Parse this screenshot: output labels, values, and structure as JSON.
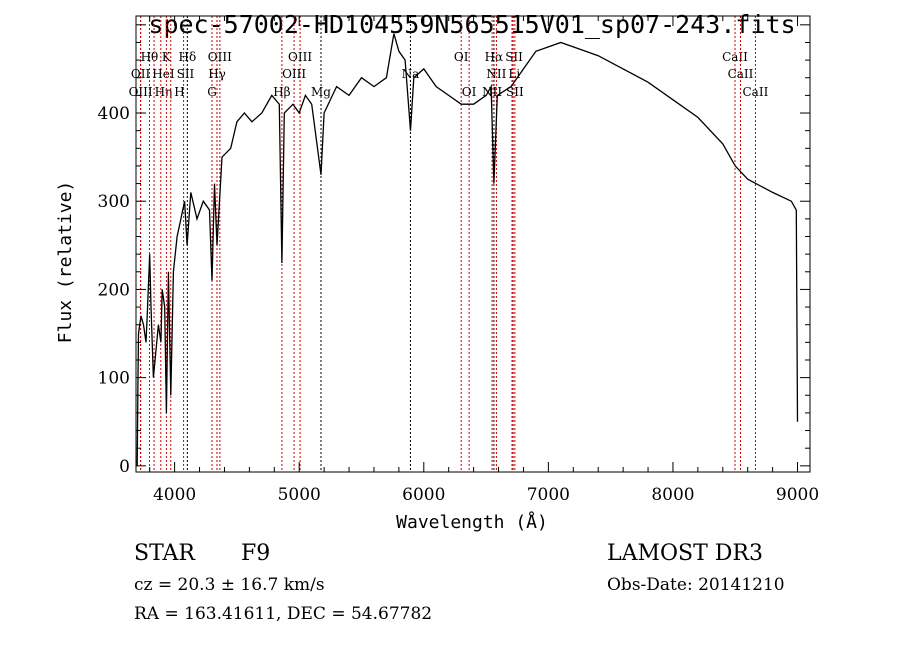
{
  "chart_data": {
    "type": "line",
    "title": "spec-57002-HD104559N565515V01_sp07-243.fits",
    "xlabel": "Wavelength (Å)",
    "ylabel": "Flux (relative)",
    "xlim": [
      3690,
      9100
    ],
    "ylim": [
      -7,
      510
    ],
    "xticks": [
      4000,
      5000,
      6000,
      7000,
      8000,
      9000
    ],
    "yticks": [
      0,
      100,
      200,
      300,
      400
    ],
    "grid": false,
    "series": [
      {
        "name": "spectrum",
        "color": "#000000",
        "x": [
          3700,
          3705,
          3710,
          3730,
          3750,
          3770,
          3780,
          3800,
          3810,
          3830,
          3850,
          3870,
          3890,
          3900,
          3920,
          3934,
          3950,
          3969,
          3990,
          4020,
          4050,
          4080,
          4100,
          4130,
          4180,
          4230,
          4280,
          4300,
          4320,
          4340,
          4380,
          4450,
          4500,
          4560,
          4620,
          4700,
          4780,
          4840,
          4861,
          4880,
          4950,
          5000,
          5050,
          5100,
          5175,
          5200,
          5300,
          5400,
          5500,
          5600,
          5700,
          5760,
          5800,
          5850,
          5893,
          5920,
          6000,
          6100,
          6200,
          6300,
          6400,
          6500,
          6540,
          6563,
          6590,
          6700,
          6800,
          6900,
          7000,
          7100,
          7200,
          7400,
          7600,
          7800,
          8000,
          8200,
          8400,
          8500,
          8600,
          8800,
          8950,
          8990,
          9000
        ],
        "y": [
          0,
          90,
          150,
          170,
          160,
          140,
          170,
          240,
          180,
          100,
          130,
          160,
          140,
          200,
          180,
          60,
          220,
          80,
          220,
          260,
          280,
          300,
          250,
          310,
          280,
          300,
          290,
          210,
          320,
          250,
          350,
          360,
          390,
          400,
          390,
          400,
          420,
          410,
          230,
          400,
          410,
          400,
          420,
          410,
          330,
          400,
          430,
          420,
          440,
          430,
          440,
          490,
          470,
          460,
          380,
          440,
          450,
          430,
          420,
          410,
          410,
          420,
          430,
          320,
          420,
          430,
          450,
          470,
          475,
          480,
          475,
          465,
          450,
          435,
          415,
          395,
          365,
          340,
          325,
          310,
          300,
          290,
          50
        ]
      }
    ],
    "lines": [
      {
        "label": "OII",
        "wave": 3727,
        "row": 2,
        "color": "#cc0000"
      },
      {
        "label": "OIII",
        "wave": 3727,
        "row": 3,
        "color": "#cc0000"
      },
      {
        "label": "Hθ",
        "wave": 3798,
        "row": 1,
        "color": "#cc0000"
      },
      {
        "label": "Hη",
        "wave": 3835,
        "row": 3,
        "color": "#cc0000"
      },
      {
        "label": "HeI",
        "wave": 3889,
        "row": 2,
        "color": "#cc0000"
      },
      {
        "label": "K",
        "wave": 3934,
        "row": 1,
        "color": "#cc0000"
      },
      {
        "label": "H",
        "wave": 3969,
        "row": 3,
        "color": "#cc0000"
      },
      {
        "label": "SII",
        "wave": 4072,
        "row": 2,
        "color": "#cc0000"
      },
      {
        "label": "Hδ",
        "wave": 4102,
        "row": 1,
        "color": "#000000"
      },
      {
        "label": "G",
        "wave": 4300,
        "row": 3,
        "color": "#cc0000"
      },
      {
        "label": "Hγ",
        "wave": 4340,
        "row": 2,
        "color": "#cc0000"
      },
      {
        "label": "OIII",
        "wave": 4363,
        "row": 1,
        "color": "#cc0000"
      },
      {
        "label": "Hβ",
        "wave": 4861,
        "row": 3,
        "color": "#cc0000"
      },
      {
        "label": "OIII",
        "wave": 4959,
        "row": 2,
        "color": "#cc0000"
      },
      {
        "label": "OIII",
        "wave": 5007,
        "row": 1,
        "color": "#cc0000"
      },
      {
        "label": "Mg",
        "wave": 5175,
        "row": 3,
        "color": "#000000"
      },
      {
        "label": "Na",
        "wave": 5893,
        "row": 2,
        "color": "#000000"
      },
      {
        "label": "OI",
        "wave": 6300,
        "row": 1,
        "color": "#cc0000"
      },
      {
        "label": "OI",
        "wave": 6364,
        "row": 3,
        "color": "#cc0000"
      },
      {
        "label": "NII",
        "wave": 6548,
        "row": 3,
        "color": "#cc0000"
      },
      {
        "label": "Hα",
        "wave": 6563,
        "row": 1,
        "color": "#000000"
      },
      {
        "label": "NII",
        "wave": 6583,
        "row": 2,
        "color": "#cc0000"
      },
      {
        "label": "Li",
        "wave": 6708,
        "row": 2,
        "color": "#cc0000"
      },
      {
        "label": "SII",
        "wave": 6717,
        "row": 1,
        "color": "#cc0000"
      },
      {
        "label": "SII",
        "wave": 6731,
        "row": 3,
        "color": "#cc0000"
      },
      {
        "label": "CaII",
        "wave": 8498,
        "row": 1,
        "color": "#cc0000"
      },
      {
        "label": "CaII",
        "wave": 8542,
        "row": 2,
        "color": "#cc0000"
      },
      {
        "label": "CaII",
        "wave": 8662,
        "row": 3,
        "color": "#cc0000"
      }
    ]
  },
  "info": {
    "object_type": "STAR",
    "subclass": "F9",
    "redshift": "cz = 20.3 ± 16.7 km/s",
    "coords": "RA = 163.41611, DEC =  54.67782",
    "survey": "LAMOST DR3",
    "obs_date": "Obs-Date: 20141210"
  }
}
